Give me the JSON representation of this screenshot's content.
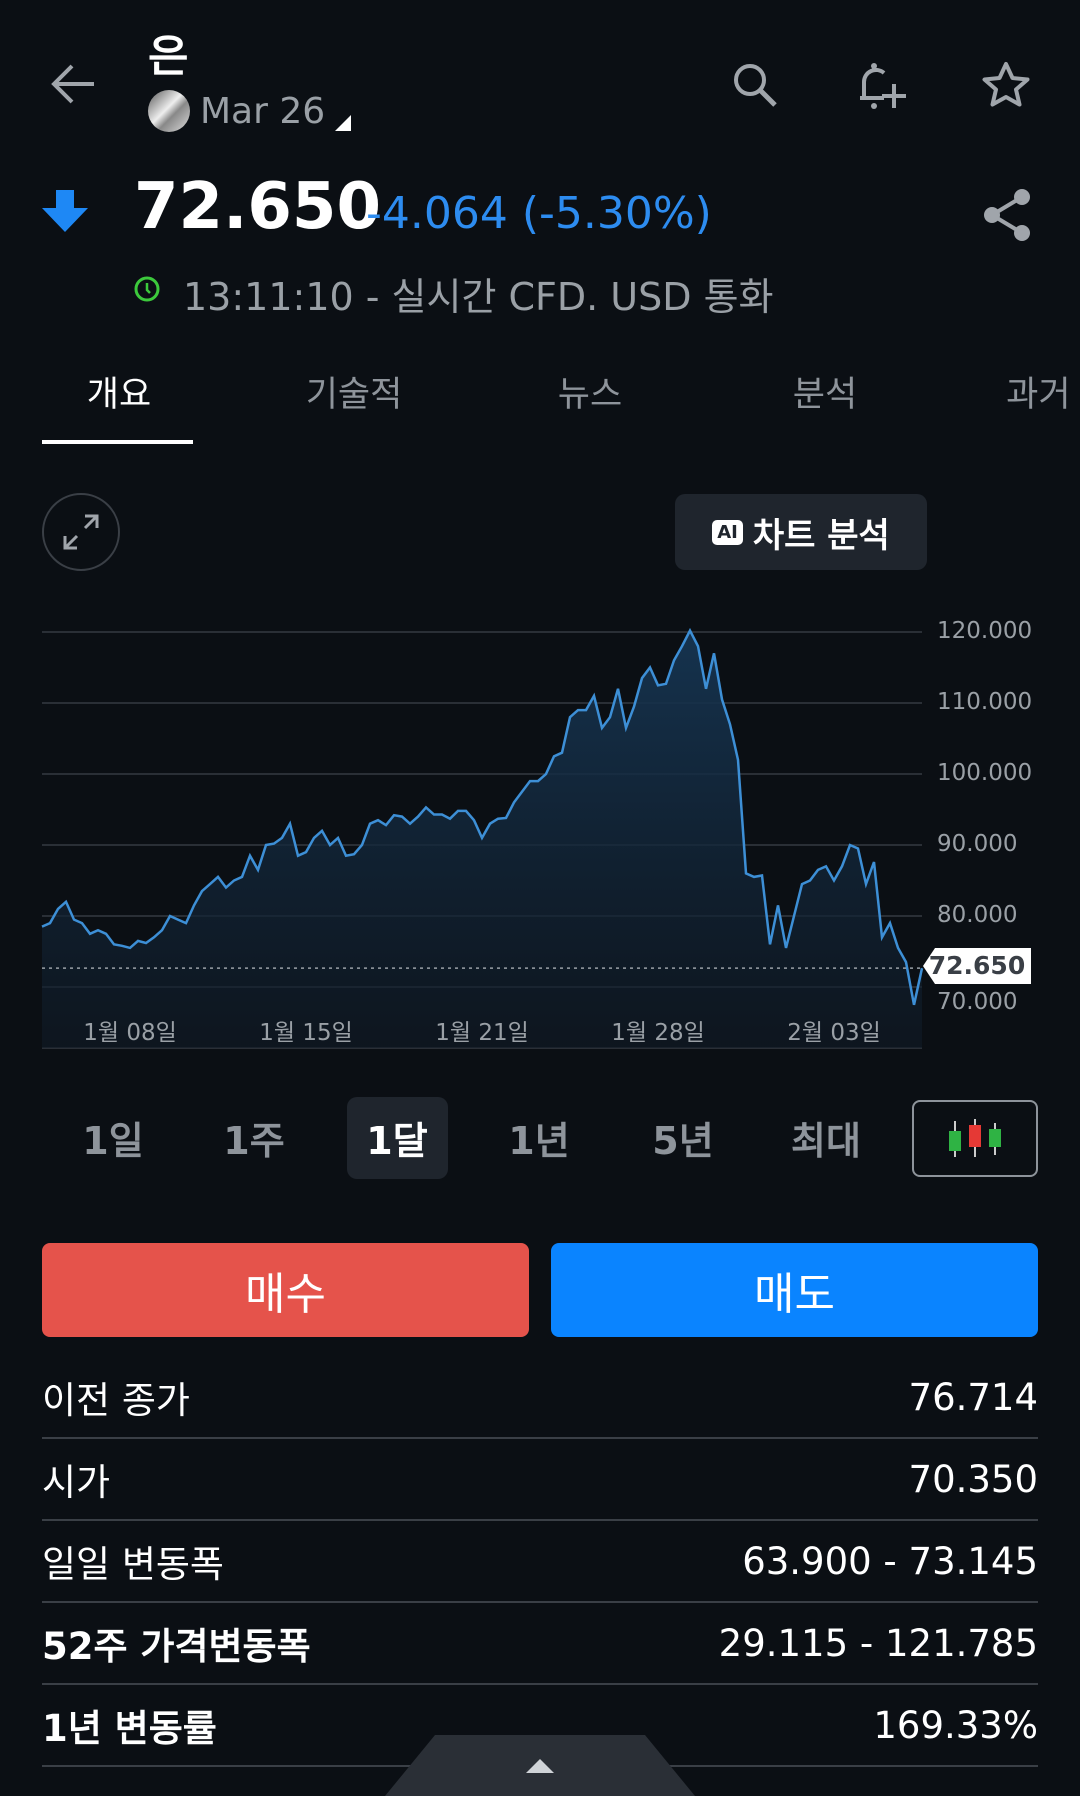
{
  "header": {
    "title": "은",
    "contract": "Mar 26",
    "back_icon": "arrow-left-icon",
    "icons": [
      "search-icon",
      "bell-plus-icon",
      "star-icon"
    ]
  },
  "quote": {
    "price": "72.650",
    "change": "-4.064 (-5.30%)",
    "direction": "down",
    "timestamp": "13:11:10 - 실시간 CFD. USD 통화",
    "down_color": "#2d8cf0"
  },
  "tabs": [
    {
      "label": "개요",
      "active": true
    },
    {
      "label": "기술적"
    },
    {
      "label": "뉴스"
    },
    {
      "label": "분석"
    },
    {
      "label": "과거 데"
    }
  ],
  "chart_controls": {
    "ai_button": "차트 분석",
    "ai_badge": "AI"
  },
  "chart_data": {
    "type": "area",
    "y_ticks": [
      "120.000",
      "110.000",
      "100.000",
      "90.000",
      "80.000",
      "70.000"
    ],
    "ylim": [
      70,
      120
    ],
    "x_ticks": [
      {
        "label": "1월 08일",
        "index": 11
      },
      {
        "label": "1월 15일",
        "index": 33
      },
      {
        "label": "1월 21일",
        "index": 55
      },
      {
        "label": "1월 28일",
        "index": 77
      },
      {
        "label": "2월 03일",
        "index": 99
      }
    ],
    "current_value": "72.650",
    "current": 72.65,
    "line_color": "#3d8fd6",
    "values": [
      78.5,
      79,
      81,
      82,
      79.5,
      79,
      77.5,
      78,
      77.5,
      76,
      75.8,
      75.5,
      76.5,
      76.2,
      77,
      78,
      80,
      79.5,
      79,
      81.5,
      83.5,
      84.5,
      85.5,
      84,
      85,
      85.5,
      88.5,
      86.5,
      90,
      90.2,
      91,
      93,
      88.5,
      89,
      91,
      92,
      90,
      91,
      88.5,
      88.7,
      90,
      93,
      93.5,
      92.8,
      94.2,
      94,
      93,
      94,
      95.3,
      94.3,
      94.3,
      93.7,
      94.8,
      94.8,
      93.5,
      91,
      93,
      93.7,
      93.8,
      96,
      97.5,
      99,
      99,
      100,
      102.5,
      103,
      108,
      109,
      109,
      111,
      106.5,
      108,
      112,
      106.5,
      109.5,
      113.5,
      115,
      112.5,
      112.7,
      116,
      118,
      120.2,
      118,
      112,
      117,
      110.5,
      107,
      102,
      86,
      85.5,
      85.7,
      76,
      81.5,
      75.5,
      80,
      84.5,
      85,
      86.5,
      87,
      85,
      87,
      90,
      89.5,
      84.5,
      87.6,
      77,
      79,
      75.5,
      73.5,
      67.5,
      72.65
    ]
  },
  "periods": [
    {
      "label": "1일"
    },
    {
      "label": "1주"
    },
    {
      "label": "1달",
      "selected": true
    },
    {
      "label": "1년"
    },
    {
      "label": "5년"
    },
    {
      "label": "최대"
    }
  ],
  "actions": {
    "buy": "매수",
    "sell": "매도",
    "buy_color": "#e5534b",
    "sell_color": "#0a84ff"
  },
  "stats": [
    {
      "label": "이전 종가",
      "value": "76.714"
    },
    {
      "label": "시가",
      "value": "70.350"
    },
    {
      "label": "일일 변동폭",
      "value": "63.900 - 73.145"
    },
    {
      "label": "52주 가격변동폭",
      "value": "29.115 - 121.785",
      "bold": true
    },
    {
      "label": "1년 변동률",
      "value": "169.33%",
      "bold": true
    }
  ]
}
